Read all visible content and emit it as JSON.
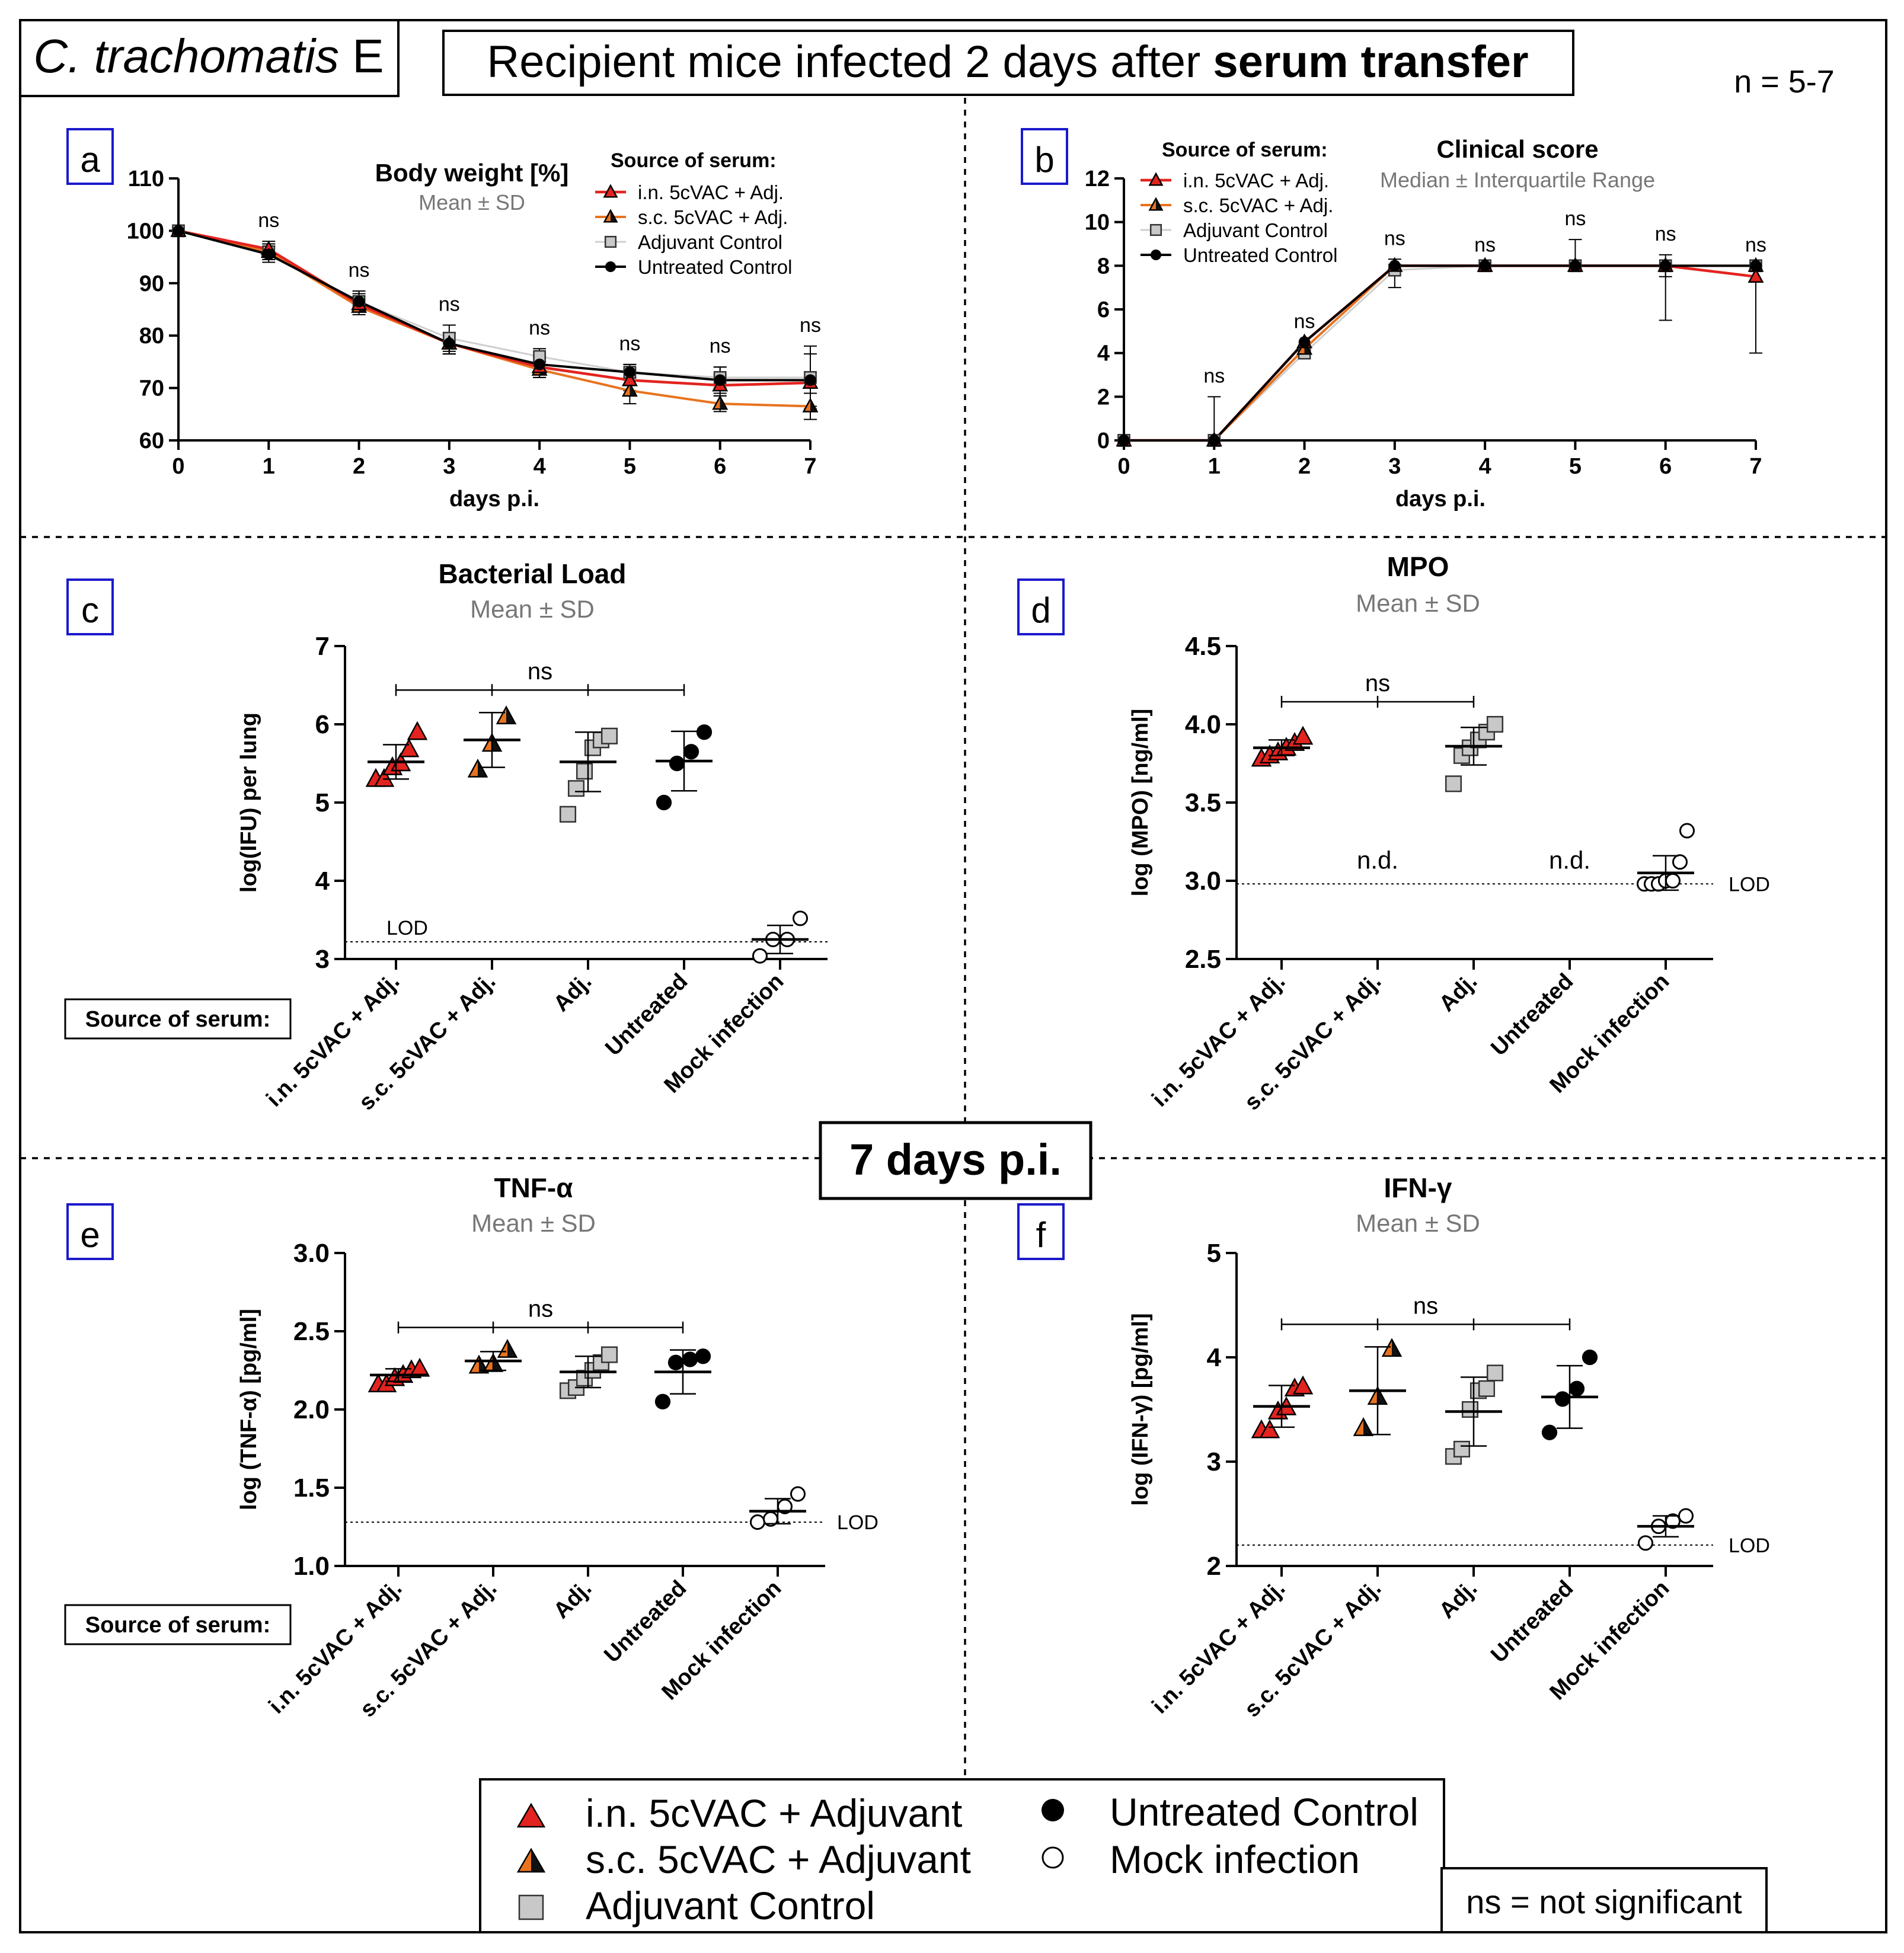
{
  "header": {
    "organism_italic": "C. trachomatis",
    "organism_serovar": " E",
    "title_prefix": "Recipient mice infected 2 days after ",
    "title_bold": "serum transfer",
    "sample_size": "n = 5-7"
  },
  "center_label": "7 days p.i.",
  "source_label": "Source of serum:",
  "lod_label": "LOD",
  "not_determined": "n.d.",
  "ns": "ns",
  "colors": {
    "in_vac": "#e3231f",
    "sc_vac_left": "#e8731f",
    "sc_vac_right": "#111111",
    "adjuvant": "#c8c8c8",
    "untreated": "#000000",
    "mock": "#ffffff"
  },
  "chart_data": [
    {
      "id": "a",
      "type": "line",
      "title": "Body weight [%]",
      "subtitle": "Mean ± SD",
      "xlabel": "days p.i.",
      "ylabel": "",
      "x": [
        0,
        1,
        2,
        3,
        4,
        5,
        6,
        7
      ],
      "xlim": [
        0,
        7
      ],
      "ylim": [
        60,
        110
      ],
      "yticks": [
        60,
        70,
        80,
        90,
        100,
        110
      ],
      "legend_title": "Source of serum:",
      "significance": [
        "",
        "ns",
        "ns",
        "ns",
        "ns",
        "ns",
        "ns",
        "ns"
      ],
      "series": [
        {
          "name": "i.n. 5cVAC + Adj.",
          "values": [
            100,
            96.5,
            86,
            78.5,
            74,
            71.5,
            70.5,
            71
          ],
          "sd": [
            0,
            1.5,
            1.5,
            2,
            2,
            2,
            2,
            2
          ]
        },
        {
          "name": "s.c. 5cVAC + Adj.",
          "values": [
            100,
            96,
            85.5,
            78.5,
            73.5,
            69.5,
            67,
            66.5
          ],
          "sd": [
            0,
            1.5,
            1.5,
            2,
            1.5,
            2.5,
            1.5,
            2.5
          ]
        },
        {
          "name": "Adjuvant Control",
          "values": [
            100,
            96,
            86.5,
            79.5,
            76,
            73,
            72,
            72
          ],
          "sd": [
            0,
            1.5,
            2,
            2.5,
            1.5,
            1.5,
            2,
            6
          ]
        },
        {
          "name": "Untreated Control",
          "values": [
            100,
            95.5,
            86.5,
            78.5,
            74.5,
            73,
            71.5,
            71.5
          ],
          "sd": [
            0,
            1.5,
            1.5,
            2,
            1.5,
            1.5,
            2.5,
            5
          ]
        }
      ]
    },
    {
      "id": "b",
      "type": "line",
      "title": "Clinical score",
      "subtitle": "Median ± Interquartile Range",
      "xlabel": "days p.i.",
      "ylabel": "",
      "x": [
        0,
        1,
        2,
        3,
        4,
        5,
        6,
        7
      ],
      "xlim": [
        0,
        7
      ],
      "ylim": [
        0,
        12
      ],
      "yticks": [
        0,
        2,
        4,
        6,
        8,
        10,
        12
      ],
      "legend_title": "Source of serum:",
      "significance": [
        "",
        "ns",
        "ns",
        "ns",
        "ns",
        "ns",
        "ns",
        "ns"
      ],
      "series": [
        {
          "name": "i.n. 5cVAC + Adj.",
          "values": [
            0,
            0,
            4.5,
            8,
            8,
            8,
            8,
            7.5
          ],
          "err_low": [
            0,
            0,
            0,
            0,
            0,
            0,
            0,
            0
          ],
          "err_high": [
            0,
            0,
            0,
            0,
            0,
            0,
            0,
            0
          ]
        },
        {
          "name": "s.c. 5cVAC + Adj.",
          "values": [
            0,
            0,
            4.2,
            8,
            8,
            8,
            8,
            8
          ],
          "err_low": [
            0,
            0,
            0,
            0,
            0,
            0,
            0,
            0
          ],
          "err_high": [
            0,
            0,
            0,
            0,
            0,
            0,
            0,
            0
          ]
        },
        {
          "name": "Adjuvant Control",
          "values": [
            0,
            0,
            4,
            7.8,
            8,
            8,
            8,
            8
          ],
          "err_low": [
            0,
            0,
            0,
            0.8,
            0,
            0,
            0.5,
            0
          ],
          "err_high": [
            0,
            2,
            0,
            0.5,
            0,
            0,
            0,
            0
          ]
        },
        {
          "name": "Untreated Control",
          "values": [
            0,
            0,
            4.5,
            8,
            8,
            8,
            8,
            8
          ],
          "err_low": [
            0,
            0,
            0,
            0,
            0,
            0,
            2.5,
            4
          ],
          "err_high": [
            0,
            0,
            0,
            0,
            0,
            1.2,
            0.5,
            0
          ]
        }
      ]
    },
    {
      "id": "c",
      "type": "scatter",
      "title": "Bacterial Load",
      "subtitle": "Mean ± SD",
      "ylabel": "log(IFU) per lung",
      "ylim": [
        3,
        7
      ],
      "yticks": [
        3,
        4,
        5,
        6,
        7
      ],
      "lod": 3.22,
      "categories": [
        "i.n. 5cVAC + Adj.",
        "s.c. 5cVAC + Adj.",
        "Adj.",
        "Untreated",
        "Mock infection"
      ],
      "comparison": {
        "from": 0,
        "to": 3,
        "label": "ns"
      },
      "groups": [
        {
          "points": [
            5.9,
            5.68,
            5.5,
            5.45,
            5.3,
            5.3
          ],
          "mean": 5.52,
          "sd": 0.22
        },
        {
          "points": [
            6.1,
            5.75,
            5.42
          ],
          "mean": 5.8,
          "sd": 0.35
        },
        {
          "points": [
            5.85,
            5.8,
            5.7,
            5.4,
            5.18,
            4.85
          ],
          "mean": 5.52,
          "sd": 0.38
        },
        {
          "points": [
            5.9,
            5.65,
            5.5,
            5.0
          ],
          "mean": 5.53,
          "sd": 0.38
        },
        {
          "points": [
            3.52,
            3.25,
            3.25,
            3.04
          ],
          "mean": 3.25,
          "sd": 0.18
        }
      ]
    },
    {
      "id": "d",
      "type": "scatter",
      "title": "MPO",
      "subtitle": "Mean ± SD",
      "ylabel": "log (MPO) [ng/ml]",
      "ylim": [
        2.5,
        4.5
      ],
      "yticks": [
        2.5,
        3.0,
        3.5,
        4.0,
        4.5
      ],
      "lod": 2.98,
      "categories": [
        "i.n. 5cVAC + Adj.",
        "s.c. 5cVAC + Adj.",
        "Adj.",
        "Untreated",
        "Mock infection"
      ],
      "comparison": {
        "from": 0,
        "to": 2,
        "label": "ns"
      },
      "nd_groups": [
        1,
        3
      ],
      "groups": [
        {
          "points": [
            3.92,
            3.88,
            3.85,
            3.82,
            3.8,
            3.78
          ],
          "mean": 3.85,
          "sd": 0.05
        },
        null,
        {
          "points": [
            4.0,
            3.95,
            3.9,
            3.85,
            3.8,
            3.62
          ],
          "mean": 3.86,
          "sd": 0.12
        },
        null,
        {
          "points": [
            3.32,
            3.12,
            3.0,
            3.0,
            2.98,
            2.98,
            2.98
          ],
          "mean": 3.05,
          "sd": 0.11
        }
      ]
    },
    {
      "id": "e",
      "type": "scatter",
      "title": "TNF-α",
      "subtitle": "Mean ± SD",
      "ylabel": "log (TNF-α) [pg/ml]",
      "ylim": [
        1.0,
        3.0
      ],
      "yticks": [
        1.0,
        1.5,
        2.0,
        2.5,
        3.0
      ],
      "lod": 1.28,
      "categories": [
        "i.n. 5cVAC + Adj.",
        "s.c. 5cVAC + Adj.",
        "Adj.",
        "Untreated",
        "Mock infection"
      ],
      "comparison": {
        "from": 0,
        "to": 3,
        "label": "ns"
      },
      "groups": [
        {
          "points": [
            2.26,
            2.25,
            2.22,
            2.2,
            2.16,
            2.16
          ],
          "mean": 2.22,
          "sd": 0.04
        },
        {
          "points": [
            2.38,
            2.29,
            2.28
          ],
          "mean": 2.31,
          "sd": 0.06
        },
        {
          "points": [
            2.35,
            2.3,
            2.25,
            2.2,
            2.14,
            2.12
          ],
          "mean": 2.24,
          "sd": 0.1
        },
        {
          "points": [
            2.34,
            2.32,
            2.3,
            2.05
          ],
          "mean": 2.24,
          "sd": 0.14
        },
        {
          "points": [
            1.46,
            1.38,
            1.3,
            1.28
          ],
          "mean": 1.35,
          "sd": 0.08
        }
      ]
    },
    {
      "id": "f",
      "type": "scatter",
      "title": "IFN-γ",
      "subtitle": "Mean ± SD",
      "ylabel": "log (IFN-γ) [pg/ml]",
      "ylim": [
        2,
        5
      ],
      "yticks": [
        2,
        3,
        4,
        5
      ],
      "lod": 2.2,
      "categories": [
        "i.n. 5cVAC + Adj.",
        "s.c. 5cVAC + Adj.",
        "Adj.",
        "Untreated",
        "Mock infection"
      ],
      "comparison": {
        "from": 0,
        "to": 3,
        "label": "ns"
      },
      "groups": [
        {
          "points": [
            3.72,
            3.7,
            3.52,
            3.48,
            3.3,
            3.3
          ],
          "mean": 3.53,
          "sd": 0.2
        },
        {
          "points": [
            4.08,
            3.62,
            3.32
          ],
          "mean": 3.68,
          "sd": 0.42
        },
        {
          "points": [
            3.85,
            3.7,
            3.68,
            3.5,
            3.12,
            3.05
          ],
          "mean": 3.48,
          "sd": 0.33
        },
        {
          "points": [
            4.0,
            3.7,
            3.6,
            3.28
          ],
          "mean": 3.62,
          "sd": 0.3
        },
        {
          "points": [
            2.48,
            2.43,
            2.38,
            2.22
          ],
          "mean": 2.38,
          "sd": 0.1
        }
      ]
    }
  ],
  "legend": {
    "items": [
      {
        "label": "i.n. 5cVAC + Adjuvant",
        "marker": "triangle-red"
      },
      {
        "label": "s.c. 5cVAC + Adjuvant",
        "marker": "triangle-split"
      },
      {
        "label": "Adjuvant Control",
        "marker": "square-gray"
      },
      {
        "label": "Untreated Control",
        "marker": "circle-black"
      },
      {
        "label": "Mock infection",
        "marker": "circle-open"
      }
    ],
    "note": "ns = not significant"
  }
}
